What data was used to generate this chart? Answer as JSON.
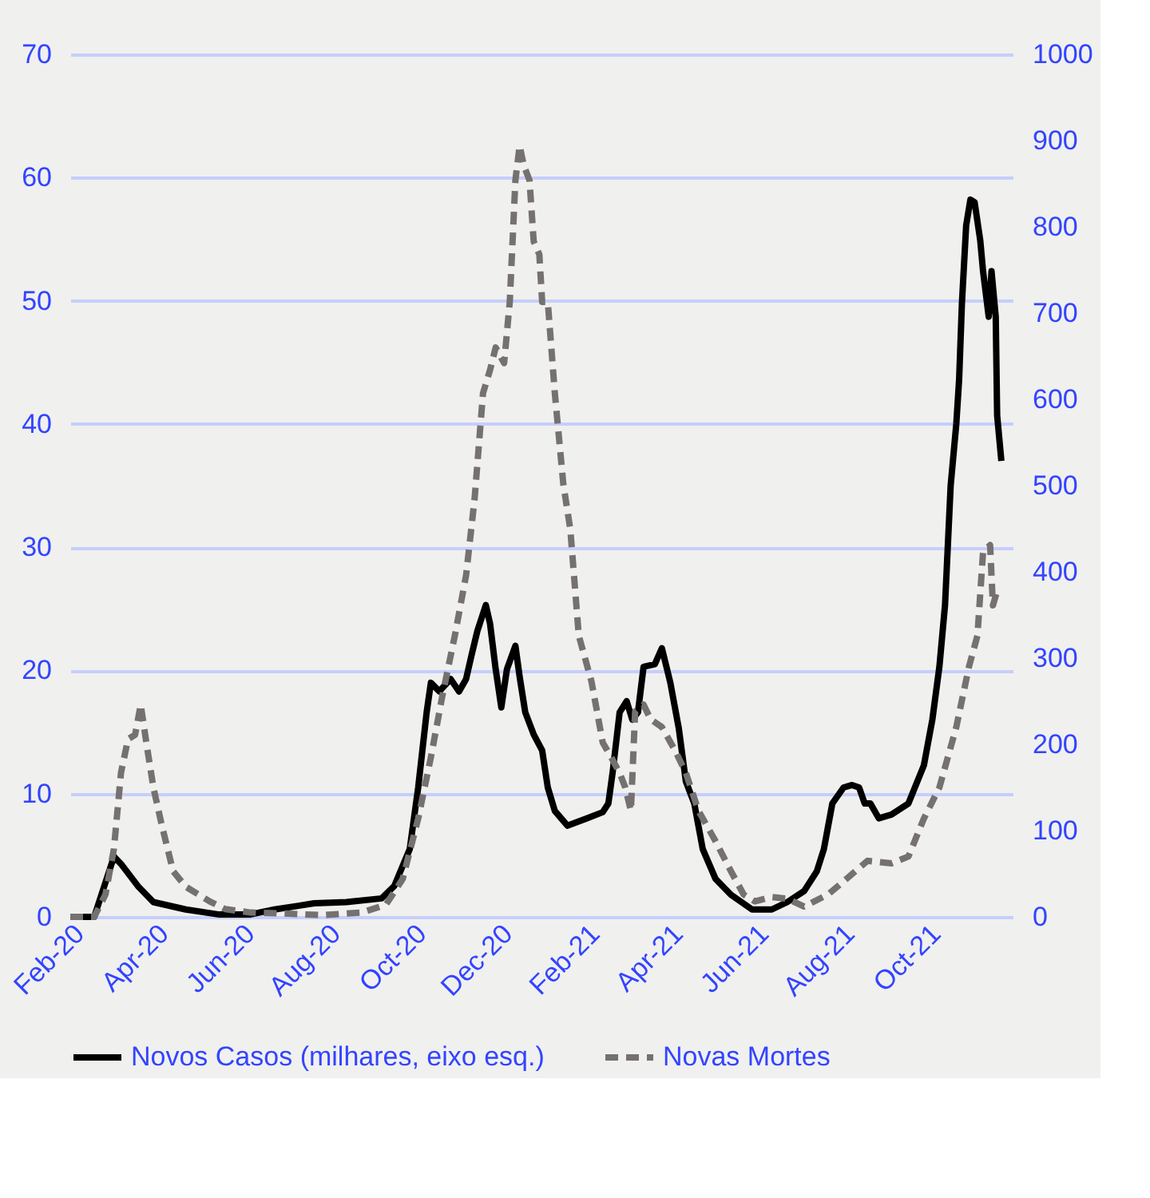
{
  "chart_data": {
    "type": "line",
    "legend": "bottom",
    "grid": "y",
    "xlim": [
      "2020-02-01",
      "2021-12-01"
    ],
    "xticks": [
      {
        "value": "2020-02-01",
        "label": "Feb-20"
      },
      {
        "value": "2020-04-01",
        "label": "Apr-20"
      },
      {
        "value": "2020-06-01",
        "label": "Jun-20"
      },
      {
        "value": "2020-08-01",
        "label": "Aug-20"
      },
      {
        "value": "2020-10-01",
        "label": "Oct-20"
      },
      {
        "value": "2020-12-01",
        "label": "Dec-20"
      },
      {
        "value": "2021-02-01",
        "label": "Feb-21"
      },
      {
        "value": "2021-04-01",
        "label": "Apr-21"
      },
      {
        "value": "2021-06-01",
        "label": "Jun-21"
      },
      {
        "value": "2021-08-01",
        "label": "Aug-21"
      },
      {
        "value": "2021-10-01",
        "label": "Oct-21"
      }
    ],
    "ylim": [
      0,
      70
    ],
    "yticks": [
      0,
      10,
      20,
      30,
      40,
      50,
      60,
      70
    ],
    "y2lim": [
      0,
      1000
    ],
    "y2ticks": [
      0,
      100,
      200,
      300,
      400,
      500,
      600,
      700,
      800,
      900,
      1000
    ],
    "series": [
      {
        "name": "Novos Casos (milhares, eixo esq.)",
        "color": "#000000",
        "line_style": "solid",
        "x": [
          "2020-02-01",
          "2020-02-18",
          "2020-03-03",
          "2020-03-08",
          "2020-03-20",
          "2020-03-31",
          "2020-04-23",
          "2020-05-16",
          "2020-06-08",
          "2020-06-25",
          "2020-07-12",
          "2020-07-23",
          "2020-08-15",
          "2020-09-09",
          "2020-09-18",
          "2020-09-29",
          "2020-10-05",
          "2020-10-11",
          "2020-10-14",
          "2020-10-20",
          "2020-10-28",
          "2020-11-03",
          "2020-11-08",
          "2020-11-12",
          "2020-11-16",
          "2020-11-22",
          "2020-11-25",
          "2020-11-29",
          "2020-12-03",
          "2020-12-07",
          "2020-12-13",
          "2020-12-16",
          "2020-12-20",
          "2020-12-26",
          "2021-01-01",
          "2021-01-05",
          "2021-01-10",
          "2021-01-19",
          "2021-02-02",
          "2021-02-13",
          "2021-02-17",
          "2021-02-20",
          "2021-02-25",
          "2021-03-02",
          "2021-03-06",
          "2021-03-10",
          "2021-03-14",
          "2021-03-22",
          "2021-03-27",
          "2021-04-02",
          "2021-04-08",
          "2021-04-13",
          "2021-04-19",
          "2021-04-25",
          "2021-05-04",
          "2021-05-15",
          "2021-05-30",
          "2021-06-13",
          "2021-06-24",
          "2021-07-06",
          "2021-07-15",
          "2021-07-20",
          "2021-07-26",
          "2021-08-03",
          "2021-08-09",
          "2021-08-14",
          "2021-08-18",
          "2021-08-22",
          "2021-08-28",
          "2021-09-06",
          "2021-09-18",
          "2021-09-29",
          "2021-10-05",
          "2021-10-10",
          "2021-10-14",
          "2021-10-18",
          "2021-10-22",
          "2021-10-24",
          "2021-10-26",
          "2021-10-29",
          "2021-11-01",
          "2021-11-04",
          "2021-11-08",
          "2021-11-10",
          "2021-11-14",
          "2021-11-16",
          "2021-11-19",
          "2021-11-20",
          "2021-11-23"
        ],
        "values": [
          0,
          0,
          4.9,
          4.3,
          2.5,
          1.2,
          0.6,
          0.2,
          0.2,
          0.6,
          0.9,
          1.1,
          1.2,
          1.5,
          2.5,
          5.5,
          10.5,
          16.6,
          19,
          18.3,
          19.3,
          18.3,
          19.3,
          21.3,
          23.2,
          25.3,
          23.8,
          20.1,
          17,
          20.1,
          22,
          19.5,
          16.6,
          14.8,
          13.5,
          10.5,
          8.6,
          7.4,
          8,
          8.5,
          9.2,
          11.7,
          16.6,
          17.5,
          16,
          16.6,
          20.3,
          20.5,
          21.8,
          19,
          15.3,
          11,
          9.2,
          5.5,
          3.1,
          1.8,
          0.6,
          0.6,
          1.2,
          2.1,
          3.7,
          5.5,
          9.2,
          10.5,
          10.7,
          10.5,
          9.2,
          9.2,
          8,
          8.3,
          9.2,
          12.3,
          16,
          20.3,
          25.3,
          35,
          40,
          43.6,
          49.8,
          56.1,
          58.2,
          58,
          54.9,
          52.4,
          48.7,
          52.4,
          48.7,
          40.7,
          37
        ]
      },
      {
        "name": "Novas Mortes",
        "color": "#757171",
        "line_style": "dashed",
        "axis": "y2",
        "x": [
          "2020-02-01",
          "2020-02-18",
          "2020-02-26",
          "2020-03-03",
          "2020-03-08",
          "2020-03-13",
          "2020-03-18",
          "2020-03-22",
          "2020-03-26",
          "2020-03-31",
          "2020-04-06",
          "2020-04-14",
          "2020-04-23",
          "2020-05-10",
          "2020-05-21",
          "2020-06-08",
          "2020-06-30",
          "2020-07-29",
          "2020-08-26",
          "2020-09-12",
          "2020-09-24",
          "2020-10-05",
          "2020-10-14",
          "2020-10-22",
          "2020-10-31",
          "2020-11-08",
          "2020-11-14",
          "2020-11-20",
          "2020-11-25",
          "2020-11-29",
          "2020-12-05",
          "2020-12-09",
          "2020-12-13",
          "2020-12-16",
          "2020-12-19",
          "2020-12-23",
          "2020-12-26",
          "2020-12-30",
          "2021-01-01",
          "2021-01-05",
          "2021-01-10",
          "2021-01-16",
          "2021-01-21",
          "2021-01-27",
          "2021-02-05",
          "2021-02-13",
          "2021-02-19",
          "2021-02-25",
          "2021-03-01",
          "2021-03-05",
          "2021-03-08",
          "2021-03-14",
          "2021-03-19",
          "2021-03-27",
          "2021-04-05",
          "2021-04-13",
          "2021-04-22",
          "2021-05-04",
          "2021-05-15",
          "2021-05-24",
          "2021-06-01",
          "2021-06-13",
          "2021-06-24",
          "2021-07-06",
          "2021-07-23",
          "2021-08-05",
          "2021-08-20",
          "2021-09-06",
          "2021-09-18",
          "2021-09-29",
          "2021-10-10",
          "2021-10-22",
          "2021-10-31",
          "2021-11-06",
          "2021-11-10",
          "2021-11-15",
          "2021-11-17",
          "2021-11-20",
          "2021-11-23"
        ],
        "values": [
          0,
          0,
          26,
          79,
          167,
          206,
          211,
          246,
          202,
          150,
          106,
          53,
          35,
          18,
          9,
          5,
          4,
          2,
          5,
          14,
          44,
          114,
          185,
          255,
          326,
          396,
          484,
          607,
          634,
          660,
          642,
          713,
          854,
          894,
          871,
          854,
          783,
          768,
          713,
          713,
          607,
          502,
          449,
          326,
          273,
          202,
          185,
          167,
          150,
          123,
          238,
          246,
          229,
          220,
          194,
          167,
          123,
          88,
          53,
          26,
          18,
          23,
          21,
          12,
          26,
          44,
          65,
          62,
          70,
          114,
          150,
          220,
          290,
          326,
          423,
          431,
          361,
          378,
          378
        ]
      }
    ]
  }
}
